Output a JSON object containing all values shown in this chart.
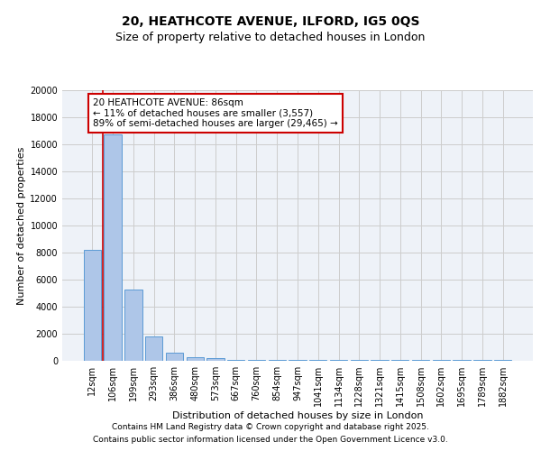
{
  "title_line1": "20, HEATHCOTE AVENUE, ILFORD, IG5 0QS",
  "title_line2": "Size of property relative to detached houses in London",
  "xlabel": "Distribution of detached houses by size in London",
  "ylabel": "Number of detached properties",
  "categories": [
    "12sqm",
    "106sqm",
    "199sqm",
    "293sqm",
    "386sqm",
    "480sqm",
    "573sqm",
    "667sqm",
    "760sqm",
    "854sqm",
    "947sqm",
    "1041sqm",
    "1134sqm",
    "1228sqm",
    "1321sqm",
    "1415sqm",
    "1508sqm",
    "1602sqm",
    "1695sqm",
    "1789sqm",
    "1882sqm"
  ],
  "values": [
    8200,
    16700,
    5300,
    1800,
    600,
    300,
    200,
    100,
    100,
    100,
    50,
    50,
    50,
    50,
    50,
    50,
    50,
    50,
    50,
    50,
    50
  ],
  "bar_color": "#aec6e8",
  "bar_edge_color": "#5b9bd5",
  "annotation_line1": "20 HEATHCOTE AVENUE: 86sqm",
  "annotation_line2": "← 11% of detached houses are smaller (3,557)",
  "annotation_line3": "89% of semi-detached houses are larger (29,465) →",
  "annotation_box_color": "#cc0000",
  "vline_x": 0.5,
  "vline_color": "#cc0000",
  "grid_color": "#cccccc",
  "background_color": "#eef2f8",
  "ylim": [
    0,
    20000
  ],
  "yticks": [
    0,
    2000,
    4000,
    6000,
    8000,
    10000,
    12000,
    14000,
    16000,
    18000,
    20000
  ],
  "footer_line1": "Contains HM Land Registry data © Crown copyright and database right 2025.",
  "footer_line2": "Contains public sector information licensed under the Open Government Licence v3.0.",
  "title_fontsize": 10,
  "subtitle_fontsize": 9,
  "label_fontsize": 8,
  "tick_fontsize": 7,
  "annotation_fontsize": 7.5,
  "footer_fontsize": 6.5
}
